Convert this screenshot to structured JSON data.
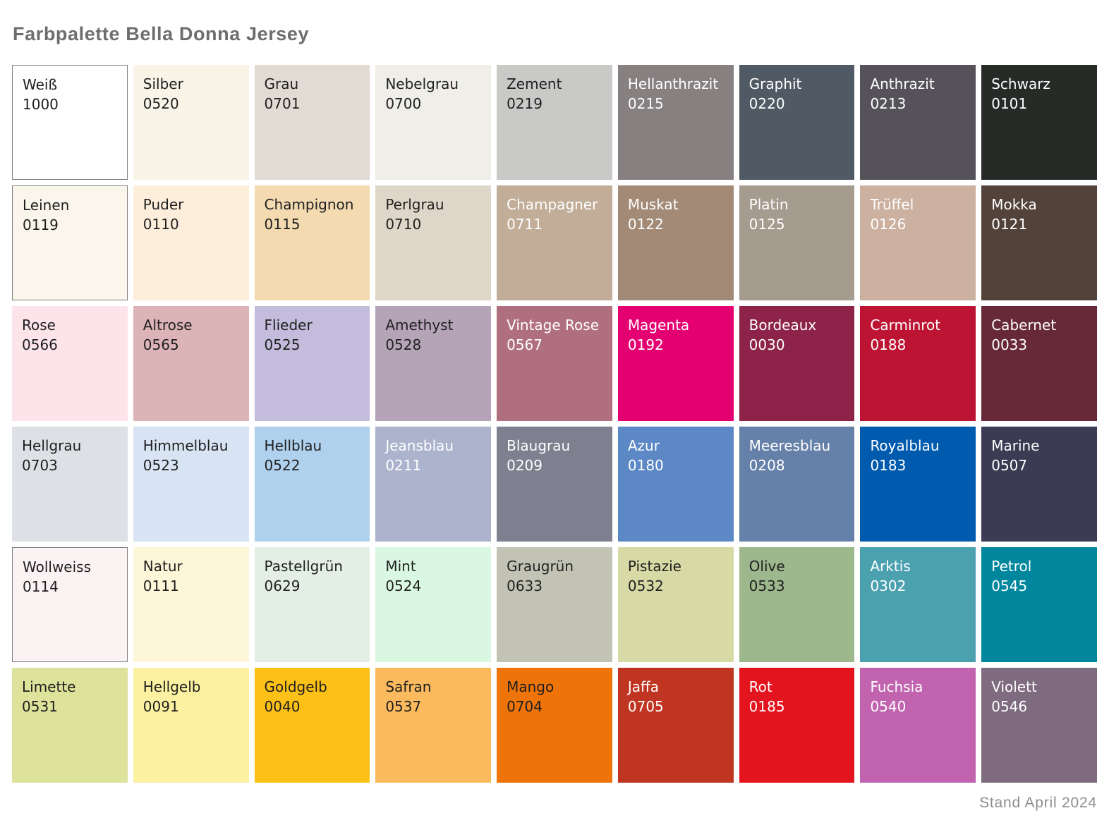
{
  "title": "Farbpalette Bella Donna Jersey",
  "footer": {
    "text": "Stand April 2024"
  },
  "palette": {
    "name": "Bella Donna Jersey",
    "columns": 9,
    "text_dark": "#1f1f1f",
    "text_light": "#ffffff",
    "border_color": "#7d7d7d",
    "swatches": [
      {
        "name": "Weiß",
        "code": "1000",
        "color": "#ffffff",
        "text": "dark",
        "border": true
      },
      {
        "name": "Silber",
        "code": "0520",
        "color": "#f9f4e8",
        "text": "dark",
        "border": false
      },
      {
        "name": "Grau",
        "code": "0701",
        "color": "#e1dbd3",
        "text": "dark",
        "border": false
      },
      {
        "name": "Nebelgrau",
        "code": "0700",
        "color": "#efeee8",
        "text": "dark",
        "border": false
      },
      {
        "name": "Zement",
        "code": "0219",
        "color": "#c9c9c7",
        "text": "dark",
        "border": false
      },
      {
        "name": "Hellanthrazit",
        "code": "0215",
        "color": "#868081",
        "text": "light",
        "border": false
      },
      {
        "name": "Graphit",
        "code": "0220",
        "color": "#4f5a64",
        "text": "light",
        "border": false
      },
      {
        "name": "Anthrazit",
        "code": "0213",
        "color": "#56525a",
        "text": "light",
        "border": false
      },
      {
        "name": "Schwarz",
        "code": "0101",
        "color": "#262b28",
        "text": "light",
        "border": false
      },
      {
        "name": "Leinen",
        "code": "0119",
        "color": "#faf6eb",
        "text": "dark",
        "border": true
      },
      {
        "name": "Puder",
        "code": "0110",
        "color": "#fdeedb",
        "text": "dark",
        "border": false
      },
      {
        "name": "Champignon",
        "code": "0115",
        "color": "#f3dab1",
        "text": "dark",
        "border": false
      },
      {
        "name": "Perlgrau",
        "code": "0710",
        "color": "#ded6c8",
        "text": "dark",
        "border": false
      },
      {
        "name": "Champagner",
        "code": "0711",
        "color": "#c1ad98",
        "text": "light",
        "border": false
      },
      {
        "name": "Muskat",
        "code": "0122",
        "color": "#a28a76",
        "text": "light",
        "border": false
      },
      {
        "name": "Platin",
        "code": "0125",
        "color": "#a69b8f",
        "text": "light",
        "border": false
      },
      {
        "name": "Trüffel",
        "code": "0126",
        "color": "#ccb0a0",
        "text": "light",
        "border": false
      },
      {
        "name": "Mokka",
        "code": "0121",
        "color": "#52423a",
        "text": "light",
        "border": false
      },
      {
        "name": "Rose",
        "code": "0566",
        "color": "#fce4ea",
        "text": "dark",
        "border": false
      },
      {
        "name": "Altrose",
        "code": "0565",
        "color": "#dcb4b7",
        "text": "dark",
        "border": false
      },
      {
        "name": "Flieder",
        "code": "0525",
        "color": "#c4bcdc",
        "text": "dark",
        "border": false
      },
      {
        "name": "Amethyst",
        "code": "0528",
        "color": "#b5a4b8",
        "text": "dark",
        "border": false
      },
      {
        "name": "Vintage Rose",
        "code": "0567",
        "color": "#b06f7e",
        "text": "light",
        "border": false
      },
      {
        "name": "Magenta",
        "code": "0192",
        "color": "#e50071",
        "text": "light",
        "border": false
      },
      {
        "name": "Bordeaux",
        "code": "0030",
        "color": "#8d2349",
        "text": "light",
        "border": false
      },
      {
        "name": "Carminrot",
        "code": "0188",
        "color": "#bd1434",
        "text": "light",
        "border": false
      },
      {
        "name": "Cabernet",
        "code": "0033",
        "color": "#672837",
        "text": "light",
        "border": false
      },
      {
        "name": "Hellgrau",
        "code": "0703",
        "color": "#dde0e5",
        "text": "dark",
        "border": false
      },
      {
        "name": "Himmelblau",
        "code": "0523",
        "color": "#d8e3f3",
        "text": "dark",
        "border": false
      },
      {
        "name": "Hellblau",
        "code": "0522",
        "color": "#afd1ed",
        "text": "dark",
        "border": false
      },
      {
        "name": "Jeansblau",
        "code": "0211",
        "color": "#abb3cd",
        "text": "light",
        "border": false
      },
      {
        "name": "Blaugrau",
        "code": "0209",
        "color": "#7e808f",
        "text": "light",
        "border": false
      },
      {
        "name": "Azur",
        "code": "0180",
        "color": "#5c88c6",
        "text": "light",
        "border": false
      },
      {
        "name": "Meeresblau",
        "code": "0208",
        "color": "#6681a9",
        "text": "light",
        "border": false
      },
      {
        "name": "Royalblau",
        "code": "0183",
        "color": "#005aad",
        "text": "light",
        "border": false
      },
      {
        "name": "Marine",
        "code": "0507",
        "color": "#3b3b53",
        "text": "light",
        "border": false
      },
      {
        "name": "Wollweiss",
        "code": "0114",
        "color": "#fbf3f3",
        "text": "dark",
        "border": true
      },
      {
        "name": "Natur",
        "code": "0111",
        "color": "#fdf6d9",
        "text": "dark",
        "border": false
      },
      {
        "name": "Pastellgrün",
        "code": "0629",
        "color": "#e3efe5",
        "text": "dark",
        "border": false
      },
      {
        "name": "Mint",
        "code": "0524",
        "color": "#daf8e1",
        "text": "dark",
        "border": false
      },
      {
        "name": "Graugrün",
        "code": "0633",
        "color": "#c3c3b5",
        "text": "dark",
        "border": false
      },
      {
        "name": "Pistazie",
        "code": "0532",
        "color": "#d7daa5",
        "text": "dark",
        "border": false
      },
      {
        "name": "Olive",
        "code": "0533",
        "color": "#9db88d",
        "text": "dark",
        "border": false
      },
      {
        "name": "Arktis",
        "code": "0302",
        "color": "#4ca1af",
        "text": "light",
        "border": false
      },
      {
        "name": "Petrol",
        "code": "0545",
        "color": "#00879d",
        "text": "light",
        "border": false
      },
      {
        "name": "Limette",
        "code": "0531",
        "color": "#dee39b",
        "text": "dark",
        "border": false
      },
      {
        "name": "Hellgelb",
        "code": "0091",
        "color": "#fbf1a1",
        "text": "dark",
        "border": false
      },
      {
        "name": "Goldgelb",
        "code": "0040",
        "color": "#fcc017",
        "text": "dark",
        "border": false
      },
      {
        "name": "Safran",
        "code": "0537",
        "color": "#faba5d",
        "text": "dark",
        "border": false
      },
      {
        "name": "Mango",
        "code": "0704",
        "color": "#ee7308",
        "text": "dark",
        "border": false
      },
      {
        "name": "Jaffa",
        "code": "0705",
        "color": "#c03521",
        "text": "light",
        "border": false
      },
      {
        "name": "Rot",
        "code": "0185",
        "color": "#e4141f",
        "text": "light",
        "border": false
      },
      {
        "name": "Fuchsia",
        "code": "0540",
        "color": "#c163af",
        "text": "light",
        "border": false
      },
      {
        "name": "Violett",
        "code": "0546",
        "color": "#7f6b7f",
        "text": "light",
        "border": false
      }
    ]
  }
}
